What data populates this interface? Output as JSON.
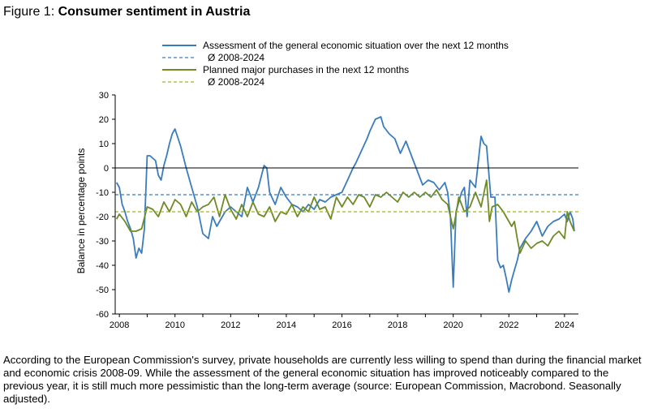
{
  "figure": {
    "prefix": "Figure 1: ",
    "title": "Consumer sentiment in Austria"
  },
  "caption": "According to the European Commission's survey, private households are currently less willing to spend than during the financial market and economic crisis 2008-09. While the assessment of the general economic situation has improved noticeably compared to the previous year, it is still much more pessimistic than the long-term average (source: European Commission, Macrobond. Seasonally adjusted).",
  "colors": {
    "blue": "#3a7dbf",
    "olive": "#6f8b26",
    "olive_avg": "#a5b81c",
    "axis": "#000000"
  },
  "chart_data": {
    "type": "line",
    "title": "Consumer sentiment in Austria",
    "xlabel": "",
    "ylabel": "Balance in percentage points",
    "xlim": [
      2007.85,
      2024.5
    ],
    "ylim": [
      -60,
      30
    ],
    "yticks": [
      30,
      20,
      10,
      0,
      -10,
      -20,
      -30,
      -40,
      -50,
      -60
    ],
    "xticks": [
      "2008",
      "2010",
      "2012",
      "2014",
      "2016",
      "2018",
      "2020",
      "2022",
      "2024"
    ],
    "grid": false,
    "legend_position": "top",
    "series": [
      {
        "name": "Assessment of the general economic situation over the next 12 months",
        "style": "solid",
        "color": "#3a7dbf",
        "x": [
          2007.9,
          2008.0,
          2008.1,
          2008.2,
          2008.3,
          2008.4,
          2008.5,
          2008.6,
          2008.7,
          2008.8,
          2008.9,
          2009.0,
          2009.1,
          2009.2,
          2009.3,
          2009.4,
          2009.5,
          2009.6,
          2009.7,
          2009.8,
          2009.9,
          2010.0,
          2010.2,
          2010.4,
          2010.6,
          2010.8,
          2011.0,
          2011.2,
          2011.35,
          2011.5,
          2011.6,
          2011.8,
          2012.0,
          2012.2,
          2012.4,
          2012.6,
          2012.8,
          2013.0,
          2013.2,
          2013.3,
          2013.4,
          2013.6,
          2013.8,
          2014.0,
          2014.2,
          2014.4,
          2014.6,
          2014.8,
          2015.0,
          2015.2,
          2015.4,
          2015.6,
          2015.8,
          2016.0,
          2016.2,
          2016.4,
          2016.5,
          2016.7,
          2016.9,
          2017.0,
          2017.2,
          2017.4,
          2017.5,
          2017.7,
          2017.9,
          2018.1,
          2018.3,
          2018.5,
          2018.7,
          2018.9,
          2019.1,
          2019.3,
          2019.5,
          2019.7,
          2019.8,
          2019.9,
          2020.0,
          2020.1,
          2020.2,
          2020.3,
          2020.4,
          2020.5,
          2020.6,
          2020.8,
          2021.0,
          2021.1,
          2021.2,
          2021.35,
          2021.5,
          2021.6,
          2021.7,
          2021.8,
          2021.9,
          2022.0,
          2022.1,
          2022.2,
          2022.3,
          2022.4,
          2022.6,
          2022.8,
          2023.0,
          2023.2,
          2023.4,
          2023.6,
          2023.8,
          2024.0,
          2024.1,
          2024.2,
          2024.3,
          2024.35
        ],
        "y": [
          -6,
          -8,
          -15,
          -18,
          -22,
          -25,
          -29,
          -37,
          -33,
          -35,
          -25,
          5,
          5,
          4,
          3,
          -3,
          -5,
          1,
          5,
          10,
          14,
          16,
          9,
          0,
          -8,
          -16,
          -27,
          -29,
          -20,
          -24,
          -22,
          -18,
          -16,
          -18,
          -20,
          -8,
          -14,
          -8,
          1,
          0,
          -10,
          -15,
          -8,
          -12,
          -15,
          -16,
          -18,
          -15,
          -17,
          -13,
          -14,
          -12,
          -11,
          -10,
          -5,
          0,
          2,
          7,
          12,
          15,
          20,
          21,
          17,
          14,
          12,
          6,
          11,
          5,
          -1,
          -7,
          -5,
          -6,
          -9,
          -6,
          -10,
          -20,
          -49,
          -18,
          -14,
          -10,
          -8,
          -20,
          -5,
          -8,
          13,
          10,
          9,
          -12,
          -12,
          -38,
          -41,
          -40,
          -45,
          -51,
          -46,
          -42,
          -38,
          -33,
          -29,
          -26,
          -22,
          -28,
          -24,
          -22,
          -21,
          -19,
          -22,
          -18,
          -21,
          -26
        ]
      },
      {
        "name": "Ø 2008-2024",
        "style": "dashed",
        "color": "#3a7dbf",
        "x": [
          2007.85,
          2024.5
        ],
        "y": [
          -11,
          -11
        ]
      },
      {
        "name": "Planned major purchases in the next 12 months",
        "style": "solid",
        "color": "#6f8b26",
        "x": [
          2007.9,
          2008.0,
          2008.2,
          2008.4,
          2008.6,
          2008.8,
          2009.0,
          2009.2,
          2009.4,
          2009.6,
          2009.8,
          2010.0,
          2010.2,
          2010.4,
          2010.6,
          2010.8,
          2011.0,
          2011.2,
          2011.4,
          2011.6,
          2011.8,
          2012.0,
          2012.2,
          2012.4,
          2012.6,
          2012.8,
          2013.0,
          2013.2,
          2013.4,
          2013.6,
          2013.8,
          2014.0,
          2014.2,
          2014.4,
          2014.6,
          2014.8,
          2015.0,
          2015.2,
          2015.4,
          2015.6,
          2015.8,
          2016.0,
          2016.2,
          2016.4,
          2016.6,
          2016.8,
          2017.0,
          2017.2,
          2017.4,
          2017.6,
          2017.8,
          2018.0,
          2018.2,
          2018.4,
          2018.6,
          2018.8,
          2019.0,
          2019.2,
          2019.4,
          2019.6,
          2019.8,
          2020.0,
          2020.1,
          2020.2,
          2020.4,
          2020.6,
          2020.8,
          2021.0,
          2021.2,
          2021.3,
          2021.4,
          2021.6,
          2021.8,
          2022.0,
          2022.1,
          2022.2,
          2022.3,
          2022.4,
          2022.6,
          2022.8,
          2023.0,
          2023.2,
          2023.4,
          2023.6,
          2023.8,
          2024.0,
          2024.1,
          2024.2,
          2024.35
        ],
        "y": [
          -21,
          -19,
          -22,
          -26,
          -26,
          -25,
          -16,
          -17,
          -20,
          -14,
          -18,
          -13,
          -15,
          -20,
          -14,
          -18,
          -16,
          -15,
          -12,
          -20,
          -11,
          -17,
          -21,
          -15,
          -20,
          -14,
          -19,
          -20,
          -16,
          -22,
          -18,
          -19,
          -15,
          -20,
          -16,
          -18,
          -12,
          -17,
          -16,
          -21,
          -12,
          -16,
          -12,
          -15,
          -11,
          -12,
          -16,
          -11,
          -12,
          -10,
          -12,
          -14,
          -10,
          -12,
          -10,
          -12,
          -10,
          -12,
          -9,
          -13,
          -15,
          -25,
          -19,
          -12,
          -18,
          -16,
          -10,
          -16,
          -5,
          -22,
          -16,
          -15,
          -18,
          -22,
          -24,
          -22,
          -29,
          -35,
          -30,
          -33,
          -31,
          -30,
          -32,
          -28,
          -26,
          -29,
          -18,
          -22,
          -26
        ]
      },
      {
        "name": "Ø 2008-2024",
        "style": "dashed",
        "color": "#a5b81c",
        "x": [
          2007.85,
          2024.5
        ],
        "y": [
          -18,
          -18
        ]
      }
    ]
  }
}
